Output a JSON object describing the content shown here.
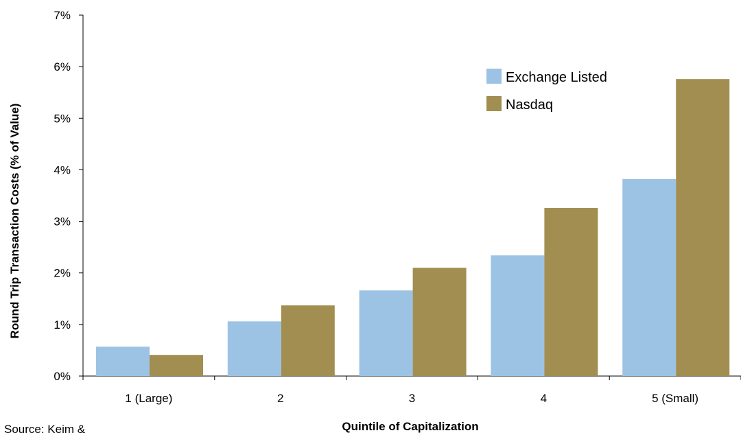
{
  "chart_data": {
    "type": "bar",
    "xlabel": "Quintile of Capitalization",
    "ylabel": "Round Trip Transaction Costs (% of Value)",
    "categories": [
      "1  (Large)",
      "2",
      "3",
      "4",
      "5 (Small)"
    ],
    "ylim": [
      0,
      7
    ],
    "yticks": [
      0,
      1,
      2,
      3,
      4,
      5,
      6,
      7
    ],
    "ytick_format": "percent",
    "grid": false,
    "legend_position": "top-right",
    "series": [
      {
        "name": "Exchange Listed",
        "color": "#9cc3e4",
        "values": [
          0.57,
          1.06,
          1.66,
          2.34,
          3.82
        ]
      },
      {
        "name": "Nasdaq",
        "color": "#a18e50",
        "values": [
          0.41,
          1.37,
          2.1,
          3.26,
          5.76
        ]
      }
    ],
    "source_note": "Source: Keim &"
  }
}
